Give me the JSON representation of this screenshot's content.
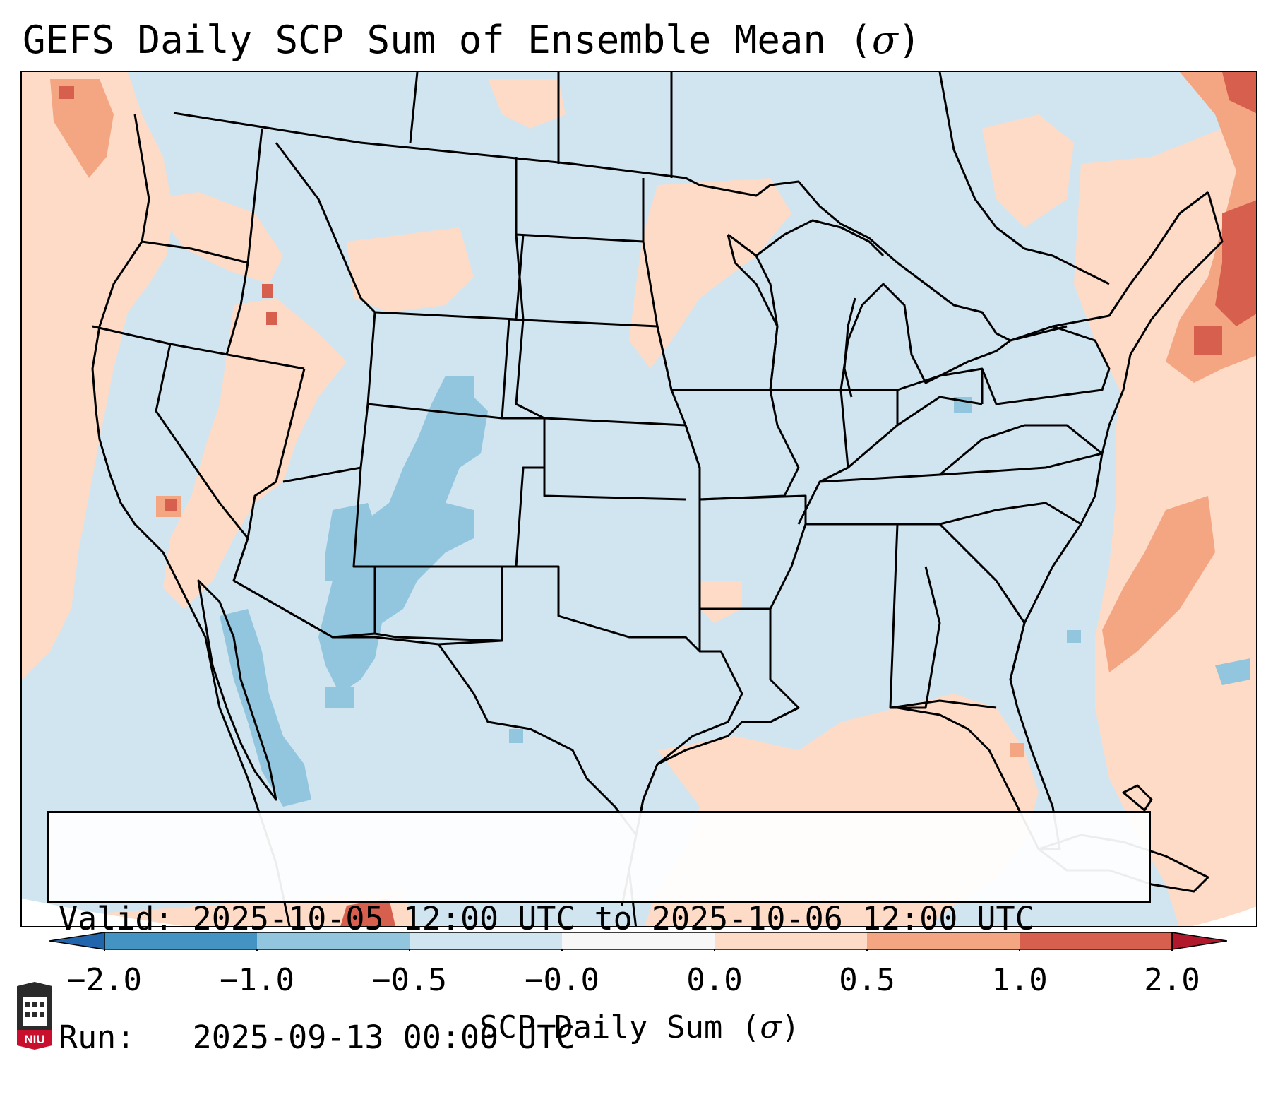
{
  "title": {
    "prefix": "GEFS Daily SCP Sum of Ensemble Mean (",
    "symbol": "σ",
    "suffix": ")"
  },
  "info_box": {
    "valid_line": "Valid: 2025-10-05 12:00 UTC to 2025-10-06 12:00 UTC",
    "run_line": "Run:   2025-09-13 00:00 UTC"
  },
  "colorbar": {
    "title_prefix": "SCP Daily Sum (",
    "title_symbol": "σ",
    "title_suffix": ")",
    "ticks": [
      "−2.0",
      "−1.0",
      "−0.5",
      "−0.0",
      "0.0",
      "0.5",
      "1.0",
      "2.0"
    ],
    "bins": [
      {
        "from": "-2.0",
        "to": "-1.0",
        "color": "#4393c3"
      },
      {
        "from": "-1.0",
        "to": "-0.5",
        "color": "#92c5de"
      },
      {
        "from": "-0.5",
        "to": "-0.0",
        "color": "#d1e5f0"
      },
      {
        "from": "-0.0",
        "to": "0.0",
        "color": "#f7f7f7"
      },
      {
        "from": "0.0",
        "to": "0.5",
        "color": "#fddbc7"
      },
      {
        "from": "0.5",
        "to": "1.0",
        "color": "#f4a582"
      },
      {
        "from": "1.0",
        "to": "2.0",
        "color": "#d6604d"
      }
    ],
    "under_color": "#2166ac",
    "over_color": "#b2182b"
  },
  "map": {
    "background_color": "#d1e5f0",
    "outline_color": "#000000",
    "projection_edge_color": "#ffffff"
  },
  "logo": {
    "text": "NIU",
    "colors": {
      "body": "#2a2a2a",
      "band": "#c8102e"
    }
  }
}
